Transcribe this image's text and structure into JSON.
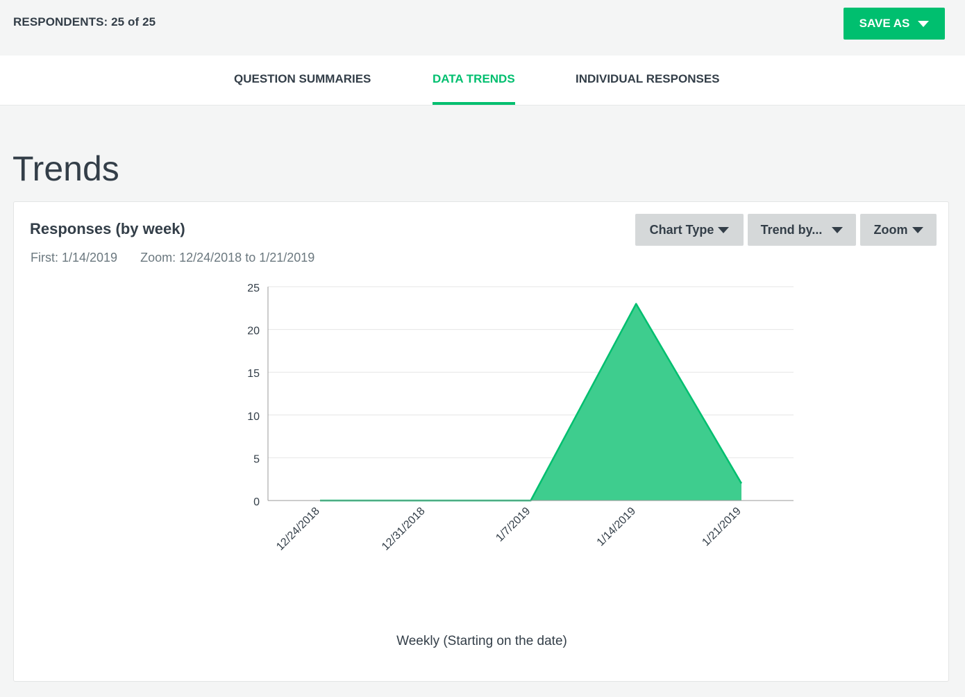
{
  "header": {
    "respondents": "RESPONDENTS: 25 of 25",
    "save_as_label": "SAVE AS"
  },
  "tabs": [
    {
      "label": "QUESTION SUMMARIES",
      "active": false
    },
    {
      "label": "DATA TRENDS",
      "active": true
    },
    {
      "label": "INDIVIDUAL RESPONSES",
      "active": false
    }
  ],
  "page": {
    "title": "Trends"
  },
  "card": {
    "title": "Responses (by week)",
    "first": "First: 1/14/2019",
    "zoom_range": "Zoom: 12/24/2018 to 1/21/2019",
    "controls": {
      "chart_type": "Chart Type",
      "trend_by": "Trend by...",
      "zoom": "Zoom"
    }
  },
  "colors": {
    "accent": "#00bf6f",
    "area_fill": "#3ecd8e",
    "button_gray": "#d5d8d9"
  },
  "chart_data": {
    "type": "area",
    "x": [
      "12/24/2018",
      "12/31/2018",
      "1/7/2019",
      "1/14/2019",
      "1/21/2019"
    ],
    "values": [
      0,
      0,
      0,
      23,
      2
    ],
    "xlabel": "Weekly (Starting on the date)",
    "ylabel": "",
    "ylim": [
      0,
      25
    ],
    "yticks": [
      0,
      5,
      10,
      15,
      20,
      25
    ],
    "grid": true
  }
}
